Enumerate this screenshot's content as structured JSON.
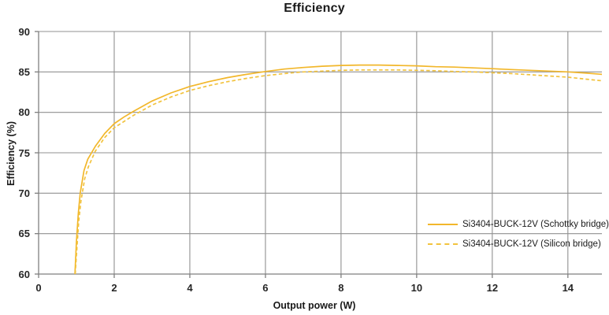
{
  "chart_data": {
    "type": "line",
    "title": "Efficiency",
    "xlabel": "Output power (W)",
    "ylabel": "Efficiency (%)",
    "xlim": [
      0,
      14.9
    ],
    "ylim": [
      60,
      90
    ],
    "xticks": [
      0,
      2,
      4,
      6,
      8,
      10,
      12,
      14
    ],
    "yticks": [
      60,
      65,
      70,
      75,
      80,
      85,
      90
    ],
    "grid": true,
    "legend_position": "bottom-right-inside",
    "colors": {
      "grid": "#909090",
      "axis": "#7f7f7f",
      "text": "#1a1a1a",
      "series_schottky": "#F2B72B",
      "series_silicon": "#F2C33E"
    },
    "series": [
      {
        "name": "Si3404-BUCK-12V (Schottky bridge)",
        "style": "solid",
        "color": "#F2B72B",
        "points": [
          [
            0.96,
            60.0
          ],
          [
            1.0,
            64.0
          ],
          [
            1.05,
            67.5
          ],
          [
            1.1,
            70.0
          ],
          [
            1.2,
            72.8
          ],
          [
            1.3,
            74.2
          ],
          [
            1.5,
            75.8
          ],
          [
            1.75,
            77.4
          ],
          [
            2.0,
            78.6
          ],
          [
            2.25,
            79.4
          ],
          [
            2.5,
            80.1
          ],
          [
            3.0,
            81.4
          ],
          [
            3.5,
            82.4
          ],
          [
            4.0,
            83.2
          ],
          [
            4.5,
            83.8
          ],
          [
            5.0,
            84.3
          ],
          [
            5.5,
            84.7
          ],
          [
            6.0,
            85.05
          ],
          [
            6.5,
            85.35
          ],
          [
            7.0,
            85.55
          ],
          [
            7.5,
            85.7
          ],
          [
            8.0,
            85.8
          ],
          [
            8.5,
            85.85
          ],
          [
            9.0,
            85.85
          ],
          [
            9.5,
            85.8
          ],
          [
            10.0,
            85.75
          ],
          [
            10.5,
            85.65
          ],
          [
            11.0,
            85.6
          ],
          [
            11.5,
            85.5
          ],
          [
            12.0,
            85.4
          ],
          [
            12.5,
            85.3
          ],
          [
            13.0,
            85.2
          ],
          [
            13.5,
            85.1
          ],
          [
            14.0,
            85.0
          ],
          [
            14.5,
            84.85
          ],
          [
            14.9,
            84.7
          ]
        ]
      },
      {
        "name": "Si3404-BUCK-12V (Silicon bridge)",
        "style": "dashed",
        "color": "#F2C33E",
        "points": [
          [
            0.97,
            60.0
          ],
          [
            1.01,
            63.0
          ],
          [
            1.06,
            66.5
          ],
          [
            1.12,
            69.0
          ],
          [
            1.22,
            71.8
          ],
          [
            1.32,
            73.3
          ],
          [
            1.5,
            75.2
          ],
          [
            1.75,
            76.9
          ],
          [
            2.0,
            78.1
          ],
          [
            2.5,
            79.6
          ],
          [
            3.0,
            80.9
          ],
          [
            3.5,
            81.9
          ],
          [
            4.0,
            82.7
          ],
          [
            4.5,
            83.3
          ],
          [
            5.0,
            83.8
          ],
          [
            5.5,
            84.2
          ],
          [
            6.0,
            84.55
          ],
          [
            6.5,
            84.8
          ],
          [
            7.0,
            85.0
          ],
          [
            7.5,
            85.1
          ],
          [
            8.0,
            85.2
          ],
          [
            8.5,
            85.25
          ],
          [
            9.0,
            85.25
          ],
          [
            9.5,
            85.25
          ],
          [
            10.0,
            85.2
          ],
          [
            10.5,
            85.15
          ],
          [
            11.0,
            85.05
          ],
          [
            11.5,
            85.0
          ],
          [
            12.0,
            84.9
          ],
          [
            12.5,
            84.8
          ],
          [
            13.0,
            84.65
          ],
          [
            13.5,
            84.5
          ],
          [
            14.0,
            84.35
          ],
          [
            14.5,
            84.1
          ],
          [
            14.9,
            83.9
          ]
        ]
      }
    ]
  }
}
